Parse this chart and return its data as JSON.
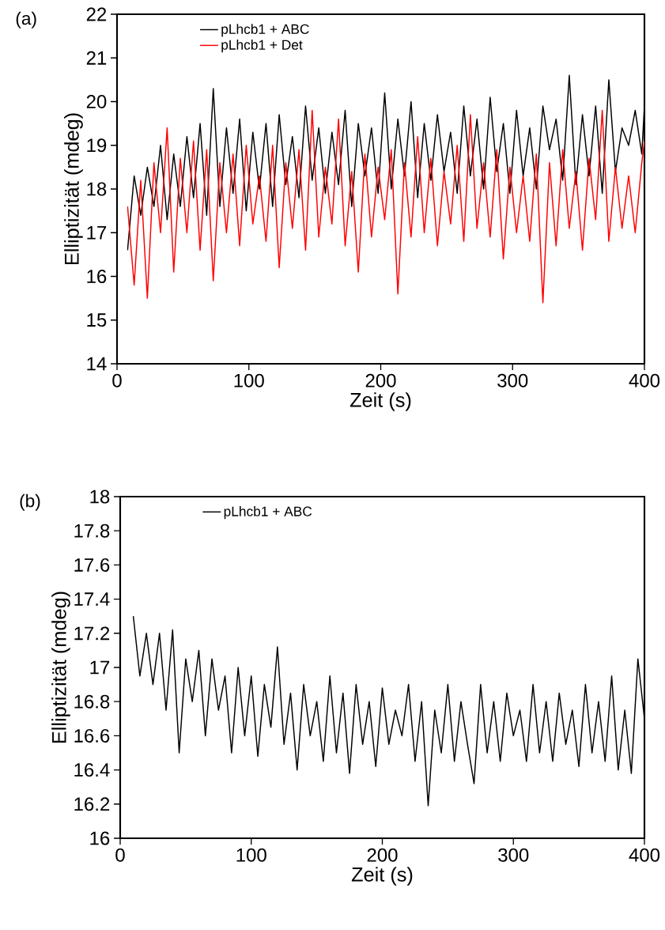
{
  "chart_data": [
    {
      "type": "line",
      "title": "(a)",
      "xlabel": "Zeit (s)",
      "ylabel": "Elliptizität (mdeg)",
      "xlim": [
        0,
        400
      ],
      "ylim": [
        14,
        22
      ],
      "xticks": [
        0,
        100,
        200,
        300,
        400
      ],
      "yticks": [
        14,
        15,
        16,
        17,
        18,
        19,
        20,
        21,
        22
      ],
      "legend": "top left",
      "marker": "none",
      "line_style": "solid",
      "x": [
        8,
        13,
        18,
        23,
        28,
        33,
        38,
        43,
        48,
        53,
        58,
        63,
        68,
        73,
        78,
        83,
        88,
        93,
        98,
        103,
        108,
        113,
        118,
        123,
        128,
        133,
        138,
        143,
        148,
        153,
        158,
        163,
        168,
        173,
        178,
        183,
        188,
        193,
        198,
        203,
        208,
        213,
        218,
        223,
        228,
        233,
        238,
        243,
        248,
        253,
        258,
        263,
        268,
        273,
        278,
        283,
        288,
        293,
        298,
        303,
        308,
        313,
        318,
        323,
        328,
        333,
        338,
        343,
        348,
        353,
        358,
        363,
        368,
        373,
        378,
        383,
        388,
        393,
        398,
        400
      ],
      "series": [
        {
          "name": "pLhcb1 + ABC",
          "color": "#000000",
          "values": [
            16.6,
            18.3,
            17.4,
            18.5,
            17.6,
            19.0,
            17.3,
            18.8,
            17.6,
            19.2,
            17.8,
            19.5,
            17.4,
            20.3,
            17.6,
            19.4,
            17.9,
            19.6,
            17.5,
            19.3,
            18.0,
            19.5,
            17.6,
            19.7,
            18.1,
            19.2,
            17.8,
            19.9,
            18.2,
            19.4,
            17.9,
            19.3,
            18.1,
            19.8,
            17.6,
            19.5,
            18.3,
            19.4,
            17.9,
            20.2,
            18.0,
            19.6,
            18.3,
            20.0,
            17.8,
            19.5,
            18.2,
            19.7,
            18.4,
            19.3,
            17.9,
            19.9,
            18.3,
            19.6,
            18.0,
            20.1,
            18.4,
            19.5,
            17.9,
            19.8,
            18.3,
            19.4,
            18.0,
            19.9,
            18.9,
            19.6,
            18.2,
            20.6,
            18.1,
            19.7,
            18.3,
            19.9,
            17.9,
            20.5,
            18.4,
            19.4,
            19.0,
            19.8,
            18.8,
            19.9
          ]
        },
        {
          "name": "pLhcb1 + Det",
          "color": "#ff0000",
          "values": [
            17.6,
            15.8,
            18.2,
            15.5,
            18.6,
            17.0,
            19.4,
            16.1,
            18.7,
            17.0,
            19.1,
            16.6,
            18.9,
            15.9,
            18.6,
            17.0,
            18.8,
            16.7,
            19.0,
            17.2,
            18.3,
            16.8,
            19.0,
            16.2,
            18.6,
            17.1,
            18.9,
            16.6,
            19.8,
            16.9,
            18.5,
            17.2,
            19.6,
            16.7,
            18.4,
            16.1,
            18.8,
            16.9,
            18.5,
            17.3,
            18.9,
            15.6,
            18.6,
            16.9,
            19.2,
            17.0,
            18.7,
            16.7,
            18.4,
            17.2,
            19.0,
            16.8,
            19.7,
            17.1,
            18.6,
            16.9,
            18.9,
            16.4,
            18.5,
            17.0,
            18.3,
            16.8,
            18.8,
            15.4,
            18.6,
            16.7,
            18.9,
            17.1,
            18.4,
            16.6,
            18.7,
            17.3,
            19.8,
            16.8,
            18.5,
            17.1,
            18.3,
            17.0,
            18.6,
            19.1
          ]
        }
      ]
    },
    {
      "type": "line",
      "title": "(b)",
      "xlabel": "Zeit (s)",
      "ylabel": "Elliptizität (mdeg)",
      "xlim": [
        0,
        400
      ],
      "ylim": [
        16,
        18
      ],
      "xticks": [
        0,
        100,
        200,
        300,
        400
      ],
      "yticks": [
        16,
        16.2,
        16.4,
        16.6,
        16.8,
        17,
        17.2,
        17.4,
        17.6,
        17.8,
        18
      ],
      "legend": "top left",
      "marker": "none",
      "line_style": "solid",
      "x": [
        10,
        15,
        20,
        25,
        30,
        35,
        40,
        45,
        50,
        55,
        60,
        65,
        70,
        75,
        80,
        85,
        90,
        95,
        100,
        105,
        110,
        115,
        120,
        125,
        130,
        135,
        140,
        145,
        150,
        155,
        160,
        165,
        170,
        175,
        180,
        185,
        190,
        195,
        200,
        205,
        210,
        215,
        220,
        225,
        230,
        235,
        240,
        245,
        250,
        255,
        260,
        265,
        270,
        275,
        280,
        285,
        290,
        295,
        300,
        305,
        310,
        315,
        320,
        325,
        330,
        335,
        340,
        345,
        350,
        355,
        360,
        365,
        370,
        375,
        380,
        385,
        390,
        395,
        400
      ],
      "series": [
        {
          "name": "pLhcb1 + ABC",
          "color": "#000000",
          "values": [
            17.3,
            16.95,
            17.2,
            16.9,
            17.2,
            16.75,
            17.22,
            16.5,
            17.05,
            16.8,
            17.1,
            16.6,
            17.05,
            16.75,
            16.95,
            16.5,
            17.0,
            16.6,
            16.95,
            16.48,
            16.9,
            16.65,
            17.12,
            16.55,
            16.85,
            16.4,
            16.9,
            16.6,
            16.8,
            16.45,
            16.95,
            16.5,
            16.85,
            16.38,
            16.9,
            16.55,
            16.8,
            16.42,
            16.88,
            16.55,
            16.75,
            16.6,
            16.9,
            16.45,
            16.8,
            16.19,
            16.75,
            16.5,
            16.9,
            16.45,
            16.8,
            16.55,
            16.32,
            16.9,
            16.5,
            16.8,
            16.45,
            16.85,
            16.6,
            16.75,
            16.45,
            16.9,
            16.5,
            16.8,
            16.45,
            16.85,
            16.55,
            16.75,
            16.42,
            16.9,
            16.5,
            16.8,
            16.45,
            16.95,
            16.4,
            16.75,
            16.38,
            17.05,
            16.7
          ]
        }
      ]
    }
  ]
}
